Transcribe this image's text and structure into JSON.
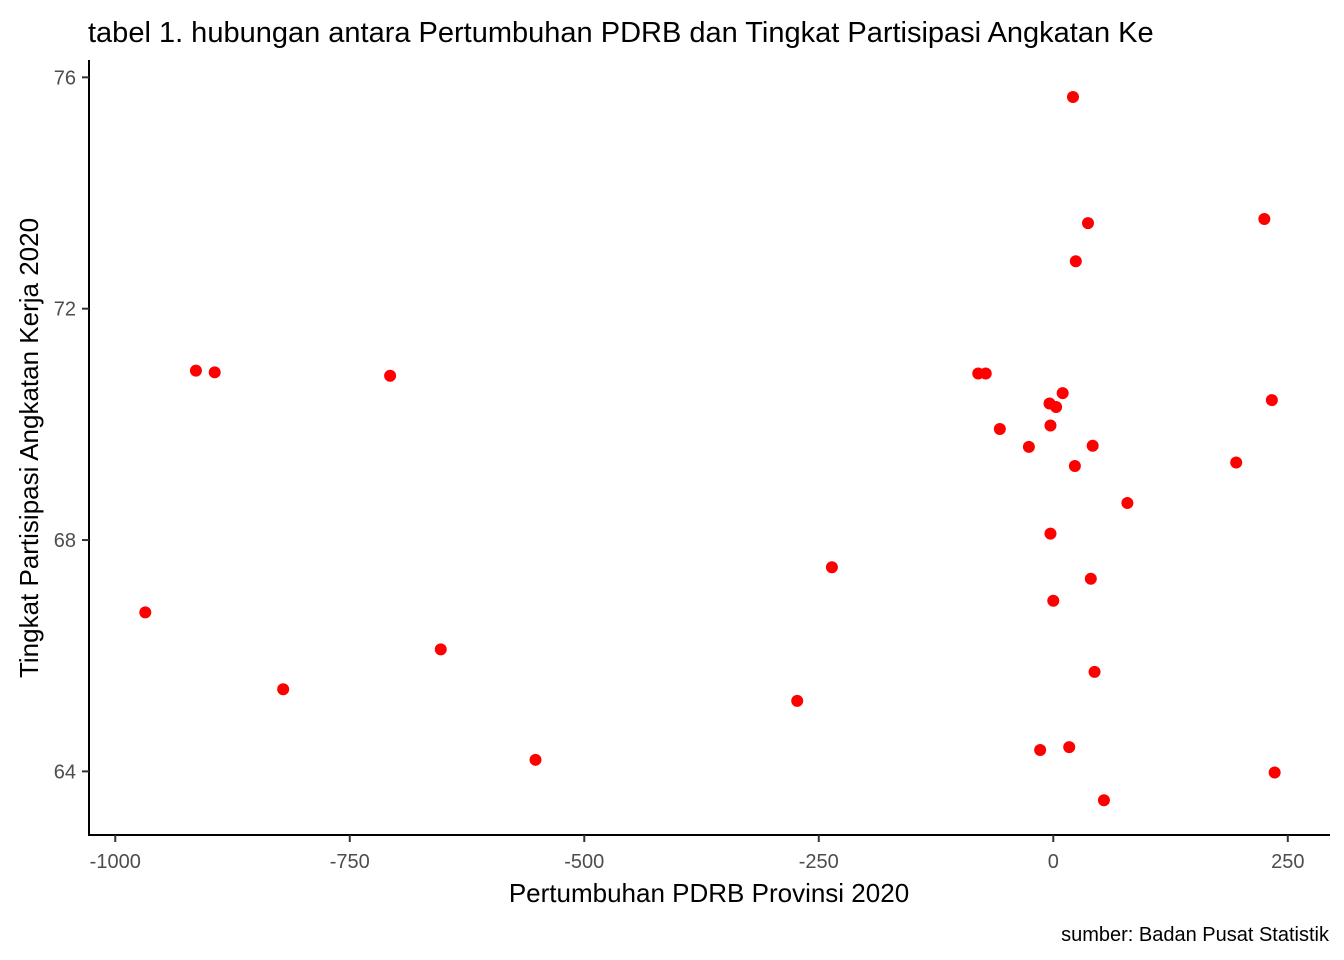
{
  "chart_data": {
    "type": "scatter",
    "title": "tabel 1. hubungan antara Pertumbuhan PDRB dan Tingkat Partisipasi Angkatan Ke",
    "xlabel": "Pertumbuhan PDRB Provinsi 2020",
    "ylabel": "Tingkat Partisipasi Angkatan Kerja 2020",
    "caption": "sumber: Badan Pusat Statistik",
    "xlim": [
      -1028,
      295
    ],
    "ylim": [
      62.9,
      76.3
    ],
    "x_ticks": [
      -1000,
      -750,
      -500,
      -250,
      0,
      250
    ],
    "x_tick_labels": [
      "-1000",
      "-750",
      "-500",
      "-250",
      "0",
      "250"
    ],
    "y_ticks": [
      64,
      68,
      72,
      76
    ],
    "y_tick_labels": [
      "64",
      "68",
      "72",
      "76"
    ],
    "grid": false,
    "point_color": "#ff0000",
    "series": [
      {
        "x": [
          -968,
          -914,
          -894,
          -821,
          -707,
          -653,
          -552,
          -273,
          -236,
          -80,
          -72,
          -57,
          -26,
          -4,
          -3,
          -3,
          3,
          10,
          -14,
          17,
          21,
          23,
          24,
          37,
          40,
          42,
          44,
          54,
          79,
          195,
          225,
          233,
          236,
          0
        ],
        "y": [
          66.75,
          70.93,
          70.9,
          65.42,
          70.84,
          66.11,
          64.2,
          65.22,
          67.53,
          70.88,
          70.88,
          69.92,
          69.61,
          70.36,
          69.98,
          68.11,
          70.3,
          70.54,
          64.37,
          64.42,
          75.66,
          69.28,
          72.82,
          73.48,
          67.33,
          69.63,
          65.72,
          63.5,
          68.64,
          69.34,
          73.55,
          70.42,
          63.98,
          66.95
        ]
      }
    ]
  }
}
